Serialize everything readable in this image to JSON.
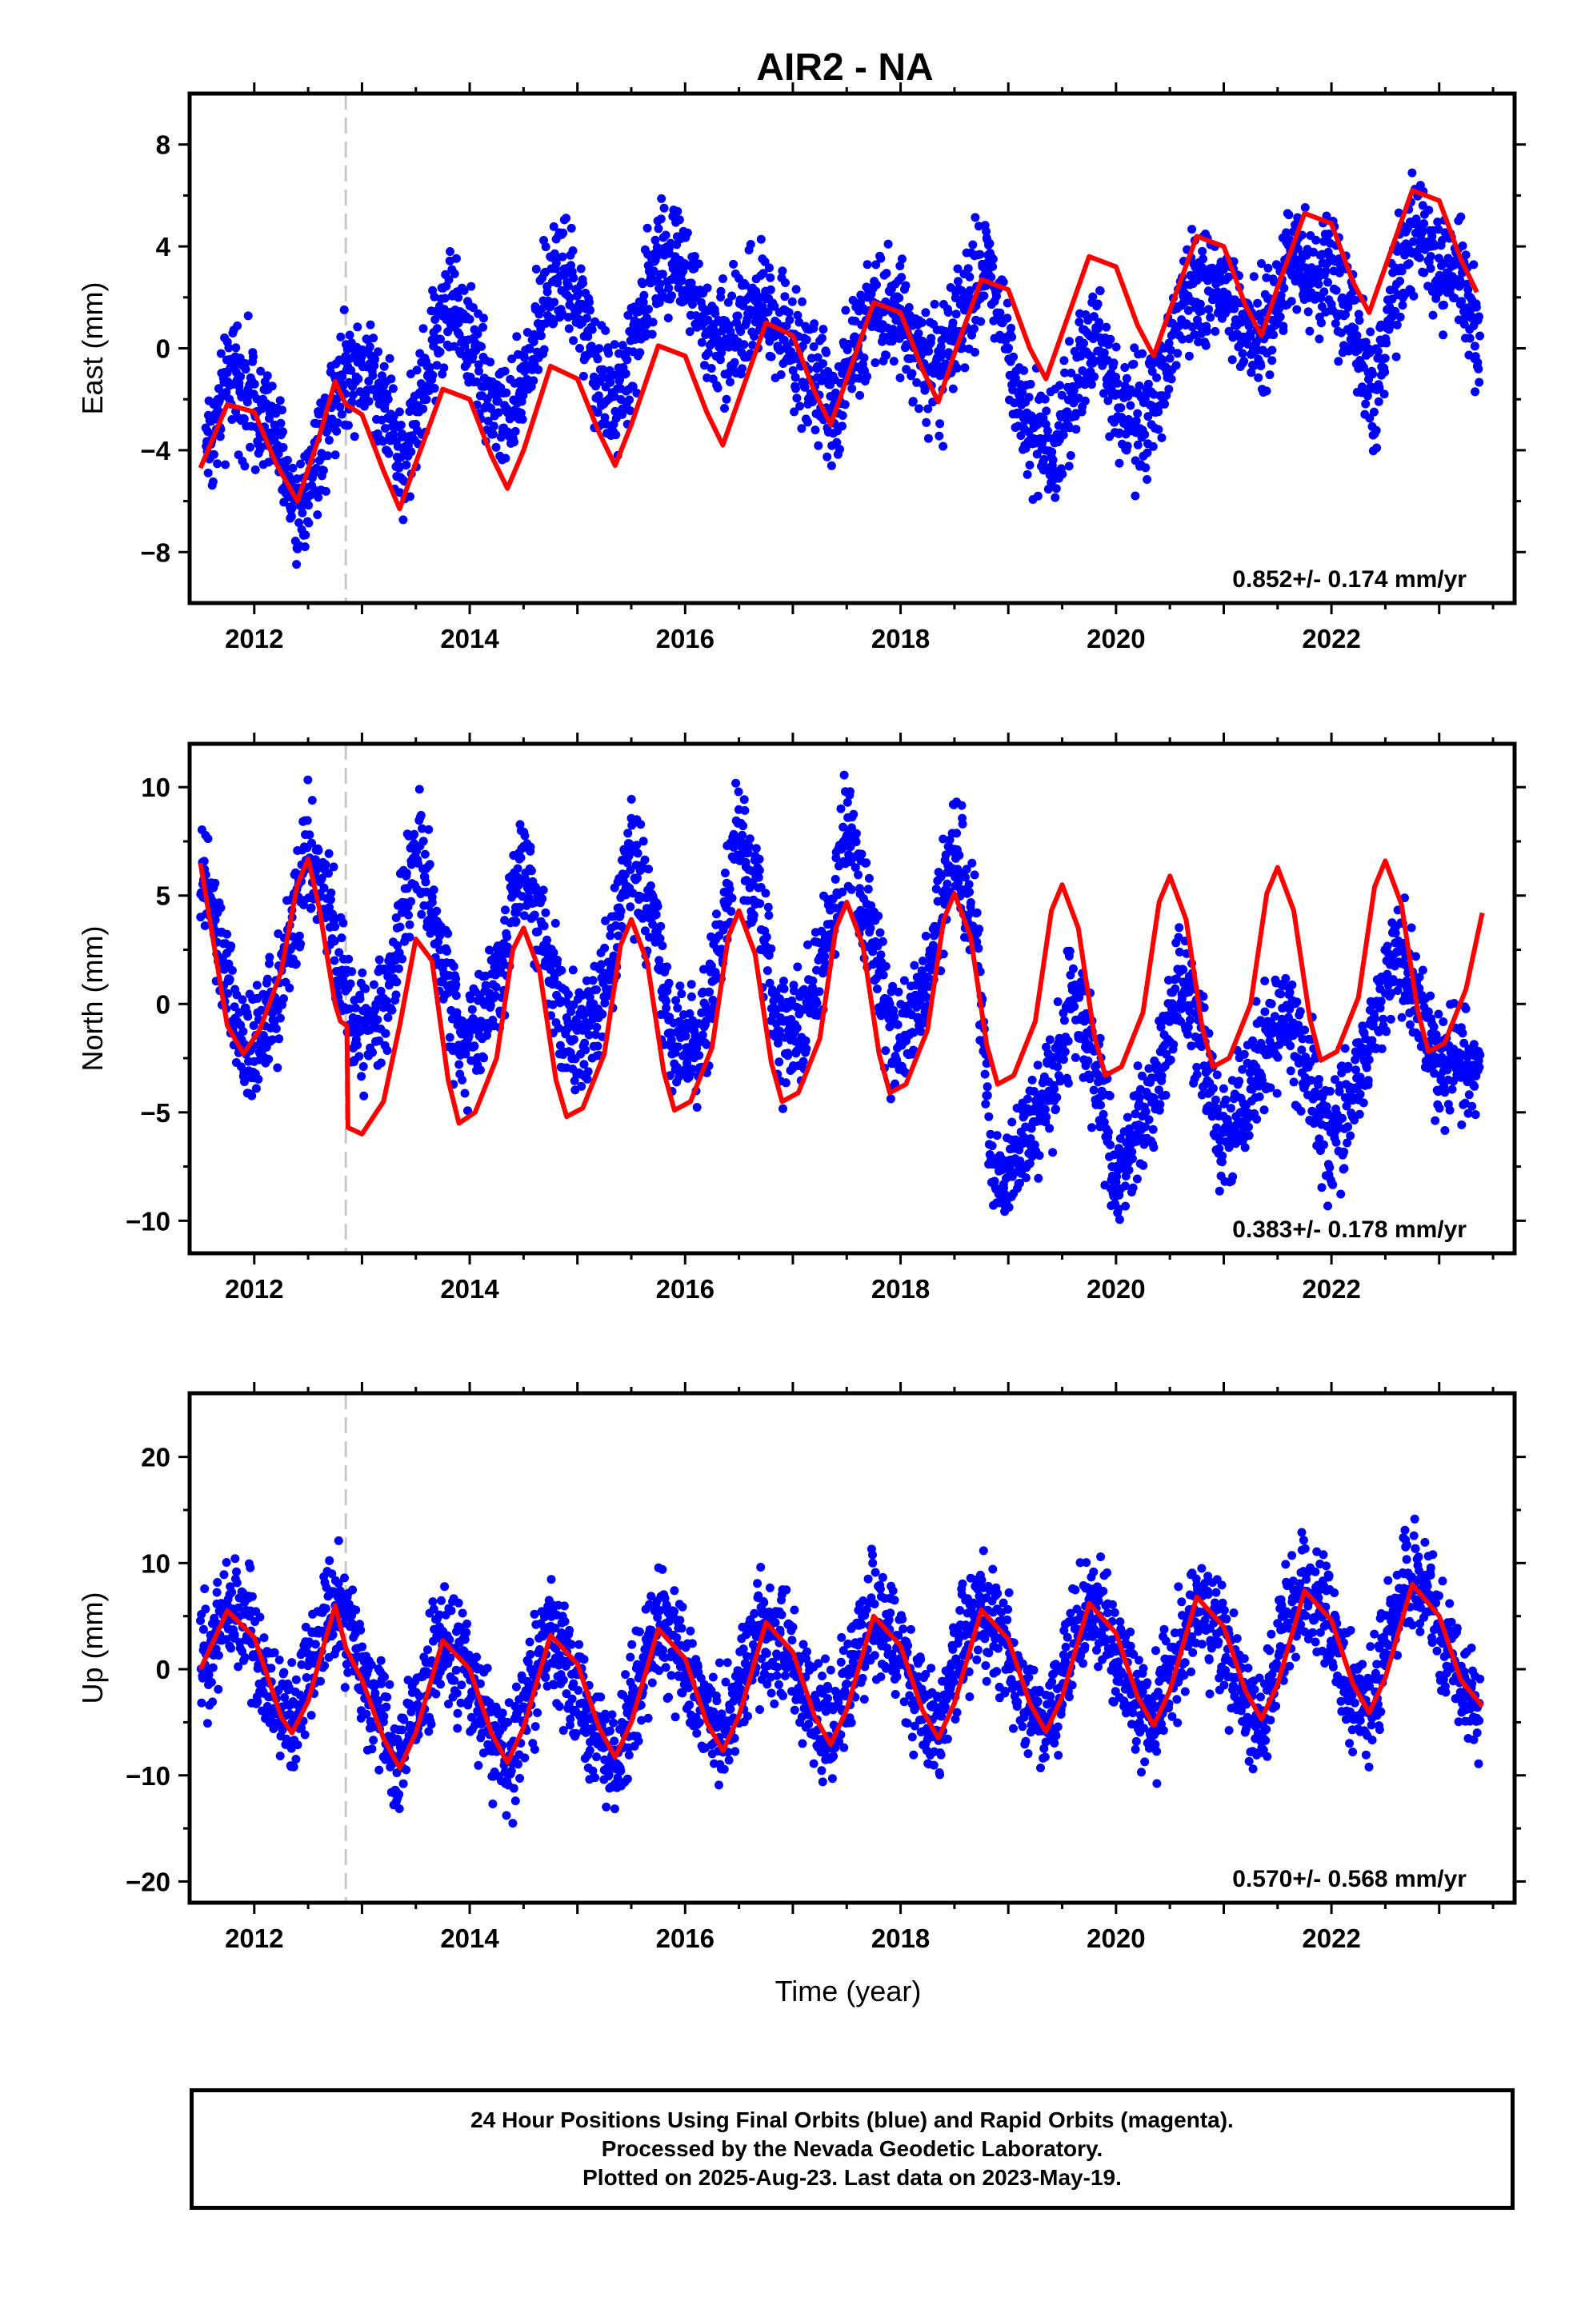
{
  "chart_data": {
    "title": "AIR2 - NA",
    "type": "scatter",
    "xlabel": "Time (year)",
    "x_ticks": [
      "2012",
      "2014",
      "2016",
      "2018",
      "2020",
      "2022"
    ],
    "xlim": [
      2011.4,
      2023.7
    ],
    "antenna_change_year": 2012.85,
    "panels": [
      {
        "ylabel": "East (mm)",
        "ylim": [
          -10,
          10
        ],
        "y_ticks": [
          "8",
          "4",
          "0",
          "−4",
          "−8"
        ],
        "y_tick_values": [
          8,
          4,
          0,
          -4,
          -8
        ],
        "rate": "0.852+/- 0.174 mm/yr",
        "series": [
          {
            "type": "scatter",
            "color": "#0000ff",
            "x": [
              2011.6,
              2011.8,
              2012.0,
              2012.2,
              2012.4,
              2012.6,
              2012.8,
              2013.0,
              2013.2,
              2013.4,
              2013.6,
              2013.8,
              2014.0,
              2014.2,
              2014.4,
              2014.6,
              2014.8,
              2015.0,
              2015.2,
              2015.4,
              2015.6,
              2015.8,
              2016.0,
              2016.2,
              2016.4,
              2016.6,
              2016.8,
              2017.0,
              2017.2,
              2017.4,
              2017.6,
              2017.8,
              2018.0,
              2018.2,
              2018.4,
              2018.6,
              2018.8,
              2019.0,
              2019.2,
              2019.4,
              2019.6,
              2019.8,
              2020.0,
              2020.2,
              2020.4,
              2020.6,
              2020.8,
              2021.0,
              2021.2,
              2021.4,
              2021.6,
              2021.8,
              2022.0,
              2022.2,
              2022.4,
              2022.6,
              2022.8,
              2023.0,
              2023.2,
              2023.35
            ],
            "y": [
              -3.5,
              -1.0,
              -2.0,
              -3.5,
              -6.5,
              -4.0,
              -1.0,
              -0.5,
              -2.0,
              -4.5,
              -1.0,
              2.0,
              0.5,
              -2.0,
              -3.0,
              0.5,
              3.0,
              2.0,
              -1.5,
              -2.0,
              1.5,
              4.0,
              3.0,
              0.5,
              0.0,
              2.0,
              1.5,
              0.0,
              -1.0,
              -2.5,
              0.5,
              2.0,
              1.5,
              -0.5,
              -1.0,
              1.5,
              3.5,
              0.0,
              -3.0,
              -4.5,
              -1.5,
              1.0,
              -2.0,
              -3.0,
              -2.0,
              1.5,
              2.5,
              2.0,
              0.5,
              0.5,
              3.5,
              3.0,
              3.0,
              1.0,
              -2.0,
              2.5,
              4.5,
              3.5,
              3.0,
              0.5
            ]
          },
          {
            "type": "line",
            "color": "#ff0000",
            "x": [
              2011.5,
              2011.75,
              2012.0,
              2012.2,
              2012.4,
              2012.6,
              2012.75,
              2012.85,
              2013.0,
              2013.2,
              2013.35,
              2013.5,
              2013.75,
              2014.0,
              2014.2,
              2014.35,
              2014.5,
              2014.75,
              2015.0,
              2015.2,
              2015.35,
              2015.5,
              2015.75,
              2016.0,
              2016.2,
              2016.35,
              2016.5,
              2016.75,
              2017.0,
              2017.2,
              2017.35,
              2017.5,
              2017.75,
              2018.0,
              2018.2,
              2018.35,
              2018.5,
              2018.75,
              2019.0,
              2019.2,
              2019.35,
              2019.5,
              2019.75,
              2020.0,
              2020.2,
              2020.35,
              2020.5,
              2020.75,
              2021.0,
              2021.2,
              2021.35,
              2021.5,
              2021.75,
              2022.0,
              2022.2,
              2022.35,
              2022.5,
              2022.75,
              2023.0,
              2023.2,
              2023.35
            ],
            "y": [
              -4.7,
              -2.2,
              -2.5,
              -4.5,
              -6.0,
              -3.5,
              -1.3,
              -2.2,
              -2.6,
              -4.8,
              -6.3,
              -4.5,
              -1.6,
              -2.0,
              -4.2,
              -5.5,
              -4.0,
              -0.7,
              -1.2,
              -3.3,
              -4.6,
              -3.0,
              0.1,
              -0.3,
              -2.5,
              -3.8,
              -2.0,
              1.0,
              0.5,
              -1.7,
              -3.0,
              -1.2,
              1.8,
              1.4,
              -0.8,
              -2.1,
              -0.2,
              2.7,
              2.3,
              0.0,
              -1.2,
              0.6,
              3.6,
              3.2,
              0.9,
              -0.3,
              1.5,
              4.4,
              4.0,
              1.7,
              0.5,
              2.4,
              5.3,
              4.9,
              2.6,
              1.4,
              3.2,
              6.2,
              5.8,
              3.5,
              2.2
            ]
          }
        ]
      },
      {
        "ylabel": "North (mm)",
        "ylim": [
          -11.5,
          12
        ],
        "y_ticks": [
          "10",
          "5",
          "0",
          "−5",
          "−10"
        ],
        "y_tick_values": [
          10,
          5,
          0,
          -5,
          -10
        ],
        "rate": "0.383+/- 0.178 mm/yr",
        "series": [
          {
            "type": "scatter",
            "color": "#0000ff",
            "x": [
              2011.55,
              2011.7,
              2011.9,
              2012.1,
              2012.3,
              2012.5,
              2012.7,
              2012.9,
              2013.1,
              2013.3,
              2013.5,
              2013.7,
              2013.9,
              2014.1,
              2014.3,
              2014.5,
              2014.7,
              2014.9,
              2015.1,
              2015.3,
              2015.5,
              2015.7,
              2015.9,
              2016.1,
              2016.3,
              2016.5,
              2016.7,
              2016.9,
              2017.1,
              2017.3,
              2017.5,
              2017.7,
              2017.9,
              2018.1,
              2018.3,
              2018.5,
              2018.7,
              2018.85,
              2019.0,
              2019.2,
              2019.4,
              2019.6,
              2019.8,
              2020.0,
              2020.2,
              2020.4,
              2020.6,
              2020.8,
              2021.0,
              2021.2,
              2021.4,
              2021.6,
              2021.8,
              2022.0,
              2022.2,
              2022.4,
              2022.6,
              2022.8,
              2023.0,
              2023.2,
              2023.35
            ],
            "y": [
              5.5,
              2.0,
              -2.5,
              -1.0,
              2.0,
              7.0,
              4.0,
              -1.0,
              -1.0,
              1.5,
              7.5,
              3.0,
              -1.5,
              -1.0,
              2.0,
              7.0,
              3.0,
              -1.5,
              -1.0,
              2.0,
              7.0,
              3.5,
              -2.0,
              -2.0,
              2.0,
              8.0,
              4.0,
              -2.0,
              -1.0,
              2.5,
              8.0,
              4.0,
              -1.5,
              -1.0,
              2.0,
              7.5,
              3.0,
              -8.0,
              -7.5,
              -6.0,
              -4.0,
              0.5,
              -3.0,
              -8.0,
              -6.0,
              -3.5,
              1.0,
              -2.0,
              -6.5,
              -4.5,
              -2.0,
              0.0,
              -3.5,
              -6.5,
              -4.0,
              -1.0,
              2.5,
              0.0,
              -3.0,
              -3.0,
              -2.5
            ]
          },
          {
            "type": "line",
            "color": "#ff0000",
            "x": [
              2011.5,
              2011.6,
              2011.75,
              2011.9,
              2012.05,
              2012.25,
              2012.4,
              2012.5,
              2012.6,
              2012.75,
              2012.8,
              2012.86,
              2012.87,
              2013.0,
              2013.2,
              2013.35,
              2013.5,
              2013.65,
              2013.8,
              2013.9,
              2014.05,
              2014.25,
              2014.4,
              2014.5,
              2014.65,
              2014.8,
              2014.9,
              2015.05,
              2015.25,
              2015.4,
              2015.5,
              2015.65,
              2015.8,
              2015.9,
              2016.05,
              2016.25,
              2016.4,
              2016.5,
              2016.65,
              2016.8,
              2016.9,
              2017.05,
              2017.25,
              2017.4,
              2017.5,
              2017.65,
              2017.8,
              2017.9,
              2018.05,
              2018.25,
              2018.4,
              2018.5,
              2018.65,
              2018.8,
              2018.9,
              2019.05,
              2019.25,
              2019.4,
              2019.5,
              2019.65,
              2019.8,
              2019.9,
              2020.05,
              2020.25,
              2020.4,
              2020.5,
              2020.65,
              2020.8,
              2020.9,
              2021.05,
              2021.25,
              2021.4,
              2021.5,
              2021.65,
              2021.8,
              2021.9,
              2022.05,
              2022.25,
              2022.4,
              2022.5,
              2022.65,
              2022.8,
              2022.9,
              2023.05,
              2023.25,
              2023.4
            ],
            "y": [
              6.5,
              3.5,
              -1.0,
              -2.3,
              -1.2,
              1.5,
              5.5,
              6.7,
              4.5,
              0.0,
              -0.8,
              -1.0,
              -5.7,
              -6.0,
              -4.5,
              -1.0,
              3.0,
              2.0,
              -3.5,
              -5.5,
              -5.0,
              -2.5,
              2.5,
              3.5,
              1.5,
              -3.5,
              -5.2,
              -4.8,
              -2.3,
              2.7,
              3.9,
              1.9,
              -3.1,
              -4.9,
              -4.5,
              -2.0,
              3.1,
              4.3,
              2.3,
              -2.7,
              -4.5,
              -4.1,
              -1.6,
              3.5,
              4.7,
              2.7,
              -2.3,
              -4.1,
              -3.7,
              -1.2,
              3.9,
              5.1,
              3.1,
              -1.9,
              -3.7,
              -3.3,
              -0.8,
              4.3,
              5.5,
              3.5,
              -1.5,
              -3.3,
              -2.9,
              -0.4,
              4.7,
              5.9,
              3.9,
              -1.1,
              -2.9,
              -2.5,
              0.0,
              5.1,
              6.3,
              4.3,
              -0.7,
              -2.6,
              -2.2,
              0.3,
              5.4,
              6.6,
              4.6,
              -0.3,
              -2.2,
              -1.8,
              0.7,
              4.2
            ]
          }
        ]
      },
      {
        "ylabel": "Up (mm)",
        "ylim": [
          -22,
          26
        ],
        "y_ticks": [
          "20",
          "10",
          "0",
          "−10",
          "−20"
        ],
        "y_tick_values": [
          20,
          10,
          0,
          -10,
          -20
        ],
        "rate": "0.570+/- 0.568 mm/yr",
        "series": [
          {
            "type": "scatter",
            "color": "#0000ff",
            "x": [
              2011.55,
              2011.75,
              2011.95,
              2012.15,
              2012.35,
              2012.55,
              2012.75,
              2012.95,
              2013.15,
              2013.35,
              2013.55,
              2013.75,
              2013.95,
              2014.15,
              2014.35,
              2014.55,
              2014.75,
              2014.95,
              2015.15,
              2015.35,
              2015.55,
              2015.75,
              2015.95,
              2016.15,
              2016.35,
              2016.55,
              2016.75,
              2016.95,
              2017.15,
              2017.35,
              2017.55,
              2017.75,
              2017.95,
              2018.15,
              2018.35,
              2018.55,
              2018.75,
              2018.95,
              2019.15,
              2019.35,
              2019.55,
              2019.75,
              2019.95,
              2020.15,
              2020.35,
              2020.55,
              2020.75,
              2020.95,
              2021.15,
              2021.35,
              2021.55,
              2021.75,
              2021.95,
              2022.15,
              2022.35,
              2022.55,
              2022.75,
              2022.95,
              2023.15,
              2023.35
            ],
            "y": [
              1.0,
              6.0,
              4.0,
              -2.0,
              -6.0,
              2.0,
              6.0,
              2.0,
              -4.0,
              -9.0,
              -2.0,
              3.0,
              0.0,
              -5.0,
              -9.0,
              -2.0,
              3.0,
              -1.0,
              -6.0,
              -9.0,
              -2.0,
              4.0,
              2.0,
              -3.0,
              -7.0,
              0.0,
              4.0,
              2.0,
              -3.0,
              -7.0,
              0.0,
              5.0,
              2.0,
              -3.0,
              -6.0,
              2.0,
              6.0,
              3.0,
              -3.0,
              -6.0,
              1.0,
              6.0,
              3.0,
              -3.0,
              -6.0,
              1.0,
              6.0,
              4.0,
              -2.0,
              -5.0,
              3.0,
              7.0,
              5.0,
              -1.0,
              -4.0,
              4.0,
              9.0,
              6.0,
              0.0,
              -4.0
            ]
          },
          {
            "type": "line",
            "color": "#ff0000",
            "x": [
              2011.5,
              2011.75,
              2012.0,
              2012.25,
              2012.35,
              2012.5,
              2012.75,
              2012.85,
              2013.0,
              2013.2,
              2013.35,
              2013.5,
              2013.75,
              2014.0,
              2014.2,
              2014.35,
              2014.5,
              2014.75,
              2015.0,
              2015.2,
              2015.35,
              2015.5,
              2015.75,
              2016.0,
              2016.2,
              2016.35,
              2016.5,
              2016.75,
              2017.0,
              2017.2,
              2017.35,
              2017.5,
              2017.75,
              2018.0,
              2018.2,
              2018.35,
              2018.5,
              2018.75,
              2019.0,
              2019.2,
              2019.35,
              2019.5,
              2019.75,
              2020.0,
              2020.2,
              2020.35,
              2020.5,
              2020.75,
              2021.0,
              2021.2,
              2021.35,
              2021.5,
              2021.75,
              2022.0,
              2022.2,
              2022.35,
              2022.5,
              2022.75,
              2023.0,
              2023.2,
              2023.4
            ],
            "y": [
              0.0,
              5.5,
              3.0,
              -4.5,
              -6.0,
              -3.0,
              6.0,
              2.0,
              -1.0,
              -6.5,
              -9.3,
              -6.0,
              2.7,
              0.0,
              -6.0,
              -8.8,
              -5.5,
              3.2,
              0.5,
              -5.5,
              -8.3,
              -5.0,
              3.8,
              1.0,
              -5.0,
              -7.7,
              -4.4,
              4.4,
              1.6,
              -4.4,
              -7.1,
              -3.8,
              5.0,
              2.2,
              -3.8,
              -6.5,
              -3.2,
              5.6,
              2.8,
              -3.2,
              -5.9,
              -2.6,
              6.2,
              3.4,
              -2.6,
              -5.3,
              -2.0,
              6.8,
              4.0,
              -2.0,
              -4.7,
              -1.4,
              7.4,
              4.6,
              -1.4,
              -4.1,
              -0.8,
              8.0,
              5.0,
              -1.0,
              -3.5
            ]
          }
        ]
      }
    ]
  },
  "footer": {
    "line1": "24 Hour Positions Using Final Orbits (blue) and Rapid Orbits (magenta).",
    "line2": "Processed by the Nevada Geodetic Laboratory.",
    "line3": "Plotted on 2025-Aug-23. Last data on 2023-May-19."
  }
}
